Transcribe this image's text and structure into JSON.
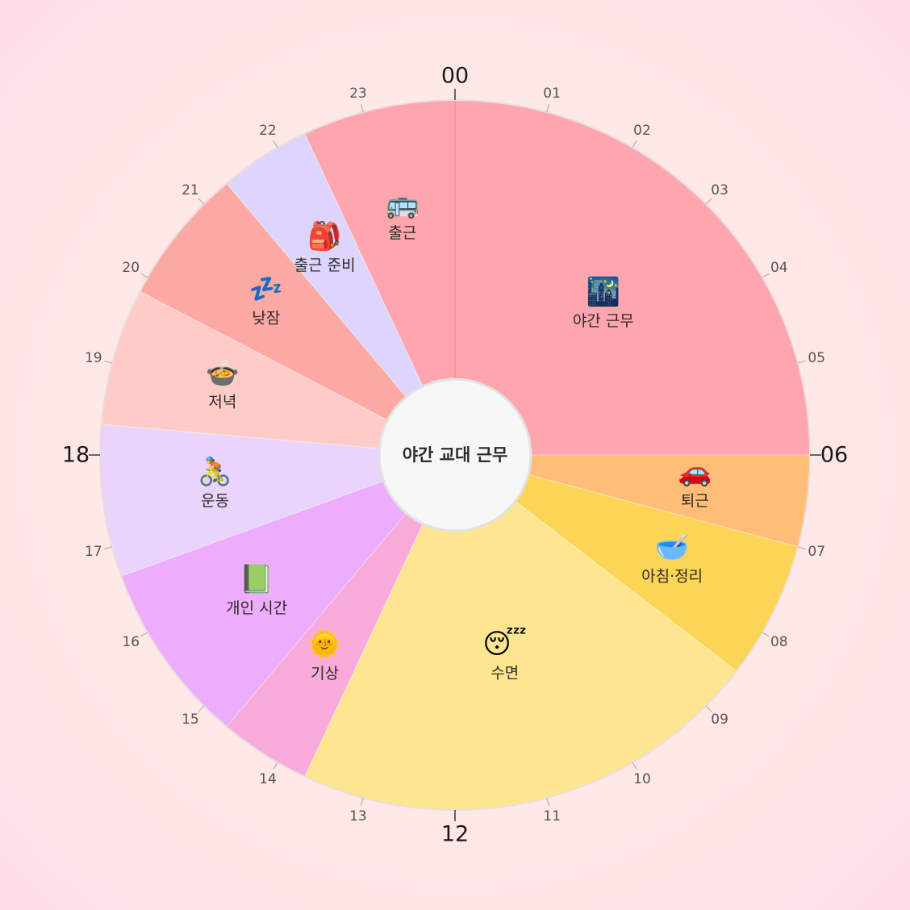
{
  "title": "야간 교대 근무",
  "hours": [
    "00",
    "01",
    "02",
    "03",
    "04",
    "05",
    "06",
    "07",
    "08",
    "09",
    "10",
    "11",
    "12",
    "13",
    "14",
    "15",
    "16",
    "17",
    "18",
    "19",
    "20",
    "21",
    "22",
    "23"
  ],
  "major_hours": [
    "00",
    "06",
    "12",
    "18"
  ],
  "chart_data": {
    "type": "pie",
    "title": "야간 교대 근무",
    "unit": "hours",
    "segments": [
      {
        "id": "night-work",
        "label": "야간 근무",
        "icon": "🌃",
        "icon_name": "night-city-icon",
        "start": 0.0,
        "end": 6.0,
        "color": "#ffa5ad"
      },
      {
        "id": "commute-home",
        "label": "퇴근",
        "icon": "🚗",
        "icon_name": "car-icon",
        "start": 6.0,
        "end": 7.0,
        "color": "#ffbd78"
      },
      {
        "id": "breakfast-tidy",
        "label": "아침·정리",
        "icon": "🥣",
        "icon_name": "bowl-icon",
        "start": 7.0,
        "end": 8.5,
        "color": "#fcd556"
      },
      {
        "id": "sleep",
        "label": "수면",
        "icon": "😴",
        "icon_name": "sleeping-face-icon",
        "start": 8.5,
        "end": 13.67,
        "color": "#fde68f"
      },
      {
        "id": "wake-up",
        "label": "기상",
        "icon": "🌞",
        "icon_name": "sun-icon",
        "start": 13.67,
        "end": 14.67,
        "color": "#f8aad8"
      },
      {
        "id": "personal-time",
        "label": "개인 시간",
        "icon": "📗",
        "icon_name": "green-book-icon",
        "start": 14.67,
        "end": 16.67,
        "color": "#ecadfc"
      },
      {
        "id": "exercise",
        "label": "운동",
        "icon": "🚴",
        "icon_name": "cyclist-icon",
        "start": 16.67,
        "end": 18.33,
        "color": "#e9d4fb"
      },
      {
        "id": "dinner",
        "label": "저녁",
        "icon": "🍲",
        "icon_name": "pot-of-food-icon",
        "start": 18.33,
        "end": 19.83,
        "color": "#ffcbc8"
      },
      {
        "id": "nap",
        "label": "낮잠",
        "icon": "💤",
        "icon_name": "zzz-icon",
        "start": 19.83,
        "end": 21.33,
        "color": "#fca9a3"
      },
      {
        "id": "prep-for-work",
        "label": "출근 준비",
        "icon": "🎒",
        "icon_name": "backpack-icon",
        "start": 21.33,
        "end": 22.33,
        "color": "#ded5fe"
      },
      {
        "id": "commute-to-work",
        "label": "출근",
        "icon": "🚌",
        "icon_name": "bus-icon",
        "start": 22.33,
        "end": 24.0,
        "color": "#ffa5ad"
      }
    ]
  }
}
